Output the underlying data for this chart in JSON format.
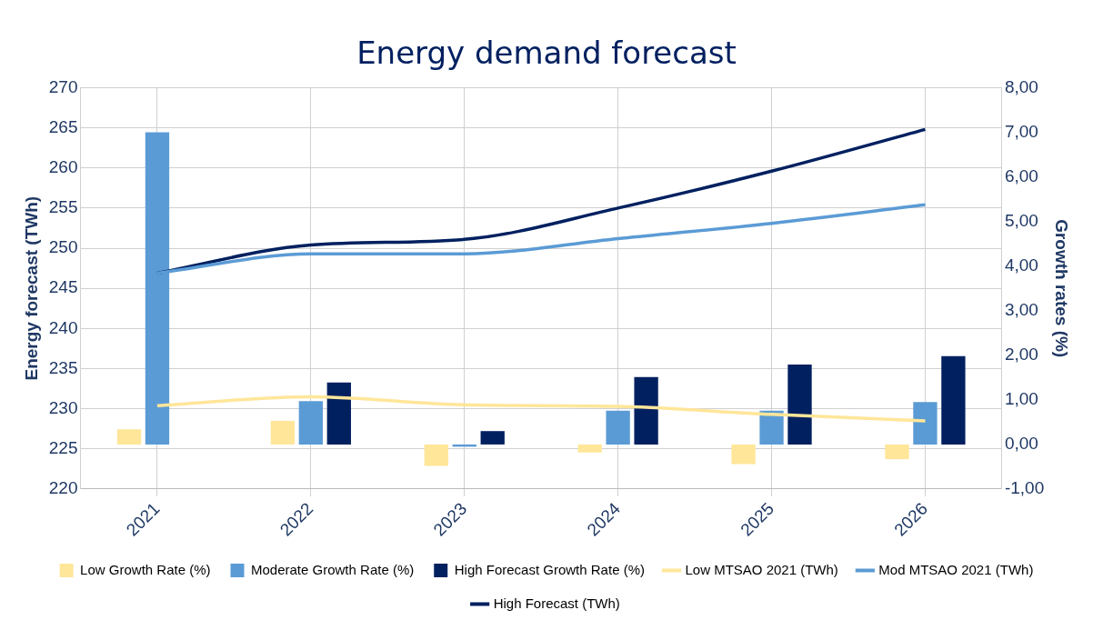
{
  "chart_data": {
    "type": "bar",
    "title": "Energy demand forecast",
    "ylabel": "Energy forecast (TWh)",
    "y2label": "Growth rates (%)",
    "categories": [
      "2021",
      "2022",
      "2023",
      "2024",
      "2025",
      "2026"
    ],
    "series": [
      {
        "name": "Low Growth Rate (%)",
        "axis": "y2",
        "color": "#ffe699",
        "values": [
          0.34,
          0.53,
          -0.48,
          -0.18,
          -0.44,
          -0.33
        ]
      },
      {
        "name": "Moderate Growth Rate (%)",
        "axis": "y2",
        "color": "#5b9bd5",
        "values": [
          7.0,
          0.97,
          -0.05,
          0.76,
          0.76,
          0.95
        ]
      },
      {
        "name": "High Forecast Growth Rate (%)",
        "axis": "y2",
        "color": "#002060",
        "values": [
          null,
          1.39,
          0.3,
          1.51,
          1.79,
          1.98
        ]
      },
      {
        "name": "Low MTSAO 2021 (TWh)",
        "type": "line",
        "color": "#ffe699",
        "values": [
          230.4,
          231.5,
          230.5,
          230.3,
          229.3,
          228.5
        ]
      },
      {
        "name": "Mod MTSAO 2021 (TWh)",
        "type": "line",
        "color": "#5b9bd5",
        "values": [
          246.9,
          249.3,
          249.3,
          251.2,
          253.1,
          255.4
        ]
      },
      {
        "name": "High Forecast (TWh)",
        "type": "line",
        "color": "#002060",
        "values": [
          246.9,
          250.4,
          251.1,
          255.0,
          259.6,
          264.8
        ]
      }
    ],
    "ylim": [
      220,
      270
    ],
    "yticks": [
      220,
      225,
      230,
      235,
      240,
      245,
      250,
      255,
      260,
      265,
      270
    ],
    "y2lim": [
      -1,
      8
    ],
    "y2ticks": [
      {
        "value": -1,
        "label": "-1,00"
      },
      {
        "value": 0,
        "label": "0,00"
      },
      {
        "value": 1,
        "label": "1,00"
      },
      {
        "value": 2,
        "label": "2,00"
      },
      {
        "value": 3,
        "label": "3,00"
      },
      {
        "value": 4,
        "label": "4,00"
      },
      {
        "value": 5,
        "label": "5,00"
      },
      {
        "value": 6,
        "label": "6,00"
      },
      {
        "value": 7,
        "label": "7,00"
      },
      {
        "value": 8,
        "label": "8,00"
      }
    ],
    "grid": true,
    "legend": "bottom",
    "marker": "none",
    "line_style": "solid"
  }
}
